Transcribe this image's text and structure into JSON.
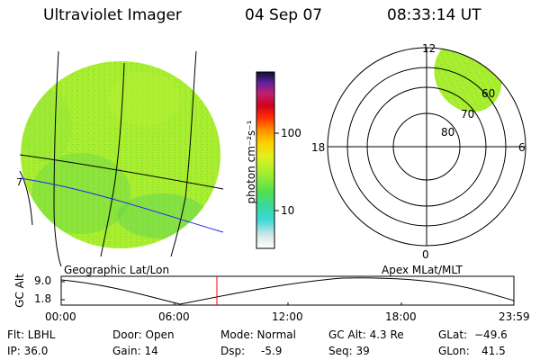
{
  "header": {
    "instrument": "Ultraviolet Imager",
    "date": "04 Sep 07",
    "time": "08:33:14 UT"
  },
  "geo_panel": {
    "caption": "Geographic Lat/Lon",
    "edge_mark": "7"
  },
  "colorbar": {
    "unit_label": "photon cm⁻²s⁻¹",
    "ticks": [
      "100",
      "10"
    ]
  },
  "polar_panel": {
    "caption": "Apex MLat/MLT",
    "mlt_labels": {
      "top": "12",
      "left": "18",
      "right": "6",
      "bottom": "0"
    },
    "lat_labels": [
      "80",
      "70",
      "60"
    ]
  },
  "gc_plot": {
    "ylabel": "GC Alt",
    "ytick_labels": [
      "9.0",
      "1.8"
    ],
    "xtick_labels": [
      "00:00",
      "06:00",
      "12:00",
      "18:00",
      "23:59"
    ]
  },
  "status": {
    "flt": "Flt: LBHL",
    "ip": "IP: 36.0",
    "door": "Door: Open",
    "gain": "Gain: 14",
    "mode": "Mode: Normal",
    "dsp_label": "Dsp:",
    "dsp_value": "-5.9",
    "gc_alt": "GC Alt: 4.3 Re",
    "seq": "Seq: 39",
    "glat_label": "GLat:",
    "glat_value": "−49.6",
    "glon_label": "GLon:",
    "glon_value": "41.5"
  },
  "colors": {
    "disk": "#a8ee2e",
    "disk_blob": "#5ed24e",
    "grid_line": "#000000",
    "terminator": "#2020ff",
    "time_marker": "#ff0000"
  }
}
